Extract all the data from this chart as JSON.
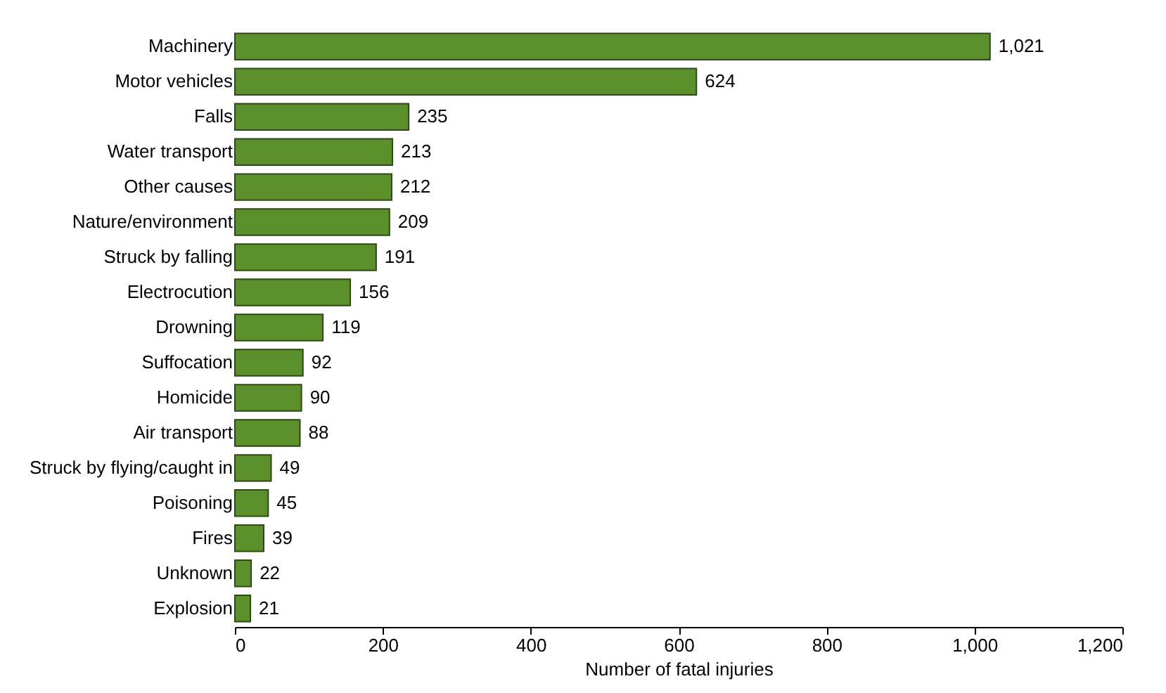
{
  "chart_data": {
    "type": "bar",
    "orientation": "horizontal",
    "xlabel": "Number of fatal injuries",
    "categories": [
      "Machinery",
      "Motor vehicles",
      "Falls",
      "Water transport",
      "Other causes",
      "Nature/environment",
      "Struck by falling",
      "Electrocution",
      "Drowning",
      "Suffocation",
      "Homicide",
      "Air transport",
      "Struck by flying/caught in",
      "Poisoning",
      "Fires",
      "Unknown",
      "Explosion"
    ],
    "values": [
      1021,
      624,
      235,
      213,
      212,
      209,
      191,
      156,
      119,
      92,
      90,
      88,
      49,
      45,
      39,
      22,
      21
    ],
    "value_labels": [
      "1,021",
      "624",
      "235",
      "213",
      "212",
      "209",
      "191",
      "156",
      "119",
      "92",
      "90",
      "88",
      "49",
      "45",
      "39",
      "22",
      "21"
    ],
    "color": "#5b8f2c",
    "xlim": [
      0,
      1200
    ],
    "xticks": [
      0,
      200,
      400,
      600,
      800,
      {
        "value": 1000,
        "label": "1,000"
      },
      {
        "value": 1200,
        "label": "1,200"
      }
    ],
    "grid": false
  }
}
